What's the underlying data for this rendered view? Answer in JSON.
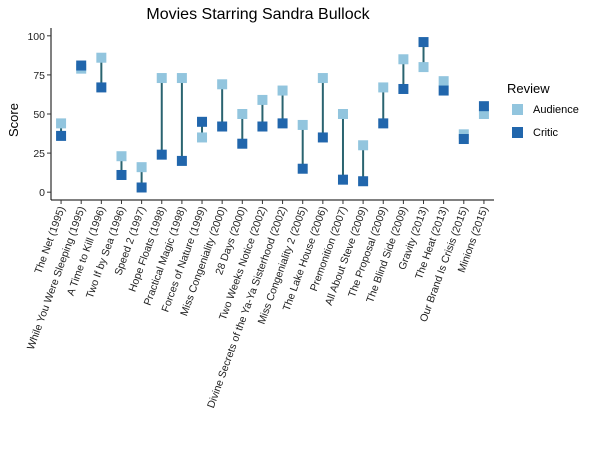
{
  "chart_data": {
    "type": "scatter",
    "title": "Movies Starring Sandra Bullock",
    "ylabel": "Score",
    "xlabel": "",
    "ylim": [
      -5,
      105
    ],
    "yticks": [
      0,
      25,
      50,
      75,
      100
    ],
    "grid": false,
    "legend": {
      "title": "Review",
      "placement": "right",
      "items": [
        {
          "label": "Audience",
          "color": "#92c5de"
        },
        {
          "label": "Critic",
          "color": "#2166ac"
        }
      ]
    },
    "segment_color": "#2a6470",
    "categories": [
      "The Net (1995)",
      "While You Were Sleeping (1995)",
      "A Time to Kill (1996)",
      "Two If by Sea (1996)",
      "Speed 2 (1997)",
      "Hope Floats (1998)",
      "Practical Magic (1998)",
      "Forces of Nature (1999)",
      "Miss Congeniality (2000)",
      "28 Days (2000)",
      "Two Weeks Notice (2002)",
      "Divine Secrets of the Ya-Ya Sisterhood (2002)",
      "Miss Congeniality 2 (2005)",
      "The Lake House (2006)",
      "Premonition (2007)",
      "All About Steve (2009)",
      "The Proposal (2009)",
      "The Blind Side (2009)",
      "Gravity (2013)",
      "The Heat (2013)",
      "Our Brand Is Crisis (2015)",
      "Minions (2015)"
    ],
    "series": [
      {
        "name": "Audience",
        "color": "#92c5de",
        "values": [
          44,
          79,
          86,
          23,
          16,
          73,
          73,
          35,
          69,
          50,
          59,
          65,
          43,
          73,
          50,
          30,
          67,
          85,
          80,
          71,
          37,
          50
        ]
      },
      {
        "name": "Critic",
        "color": "#2166ac",
        "values": [
          36,
          81,
          67,
          11,
          3,
          24,
          20,
          45,
          42,
          31,
          42,
          44,
          15,
          35,
          8,
          7,
          44,
          66,
          96,
          65,
          34,
          55
        ]
      }
    ]
  }
}
